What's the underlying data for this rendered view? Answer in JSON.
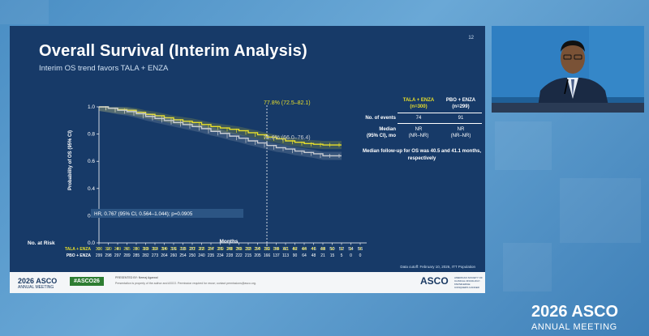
{
  "slide": {
    "title": "Overall Survival (Interim Analysis)",
    "subtitle": "Interim OS trend favors TALA + ENZA",
    "number": "12",
    "cutoff": "Data cutoff: February 10, 2026, ITT Population"
  },
  "chart_data": {
    "type": "line",
    "ylabel": "Probability of OS (95% CI)",
    "xlabel": "Months",
    "ylim": [
      0.0,
      1.0
    ],
    "yticks": [
      "0.0",
      "0.2",
      "0.4",
      "0.6",
      "0.8",
      "1.0"
    ],
    "xticks": [
      "0",
      "2",
      "4",
      "6",
      "8",
      "10",
      "12",
      "14",
      "16",
      "18",
      "20",
      "22",
      "24",
      "26",
      "28",
      "30",
      "32",
      "34",
      "36",
      "38",
      "40",
      "42",
      "44",
      "46",
      "48",
      "50",
      "52",
      "54",
      "56"
    ],
    "landmark_month": 36,
    "series": [
      {
        "name": "TALA + ENZA",
        "color": "#e8df2a",
        "x": [
          0,
          2,
          4,
          6,
          8,
          10,
          12,
          14,
          16,
          18,
          20,
          22,
          24,
          26,
          28,
          30,
          32,
          34,
          36,
          38,
          40,
          42,
          44,
          46,
          48,
          50,
          52
        ],
        "y": [
          1.0,
          0.99,
          0.98,
          0.975,
          0.96,
          0.945,
          0.935,
          0.92,
          0.905,
          0.895,
          0.885,
          0.87,
          0.855,
          0.845,
          0.835,
          0.825,
          0.81,
          0.795,
          0.778,
          0.765,
          0.75,
          0.74,
          0.73,
          0.725,
          0.72,
          0.72,
          0.72
        ]
      },
      {
        "name": "PBO + ENZA",
        "color": "#c9ccd2",
        "x": [
          0,
          2,
          4,
          6,
          8,
          10,
          12,
          14,
          16,
          18,
          20,
          22,
          24,
          26,
          28,
          30,
          32,
          34,
          36,
          38,
          40,
          42,
          44,
          46,
          48,
          50,
          52
        ],
        "y": [
          1.0,
          0.99,
          0.975,
          0.965,
          0.95,
          0.93,
          0.915,
          0.9,
          0.885,
          0.87,
          0.855,
          0.84,
          0.82,
          0.805,
          0.785,
          0.77,
          0.75,
          0.735,
          0.716,
          0.7,
          0.69,
          0.675,
          0.665,
          0.655,
          0.64,
          0.64,
          0.64
        ]
      }
    ],
    "annotations": {
      "tala": "77.8% (72.5–82.1)",
      "pbo": "71.6% (66.0–76.4)",
      "hr": "HR, 0.767 (95% CI, 0.564–1.044); p=0.0905"
    },
    "at_risk": {
      "title": "No. at Risk",
      "rows": [
        {
          "label": "TALA + ENZA",
          "color": "#e8df2a",
          "values": [
            "300",
            "300",
            "299",
            "295",
            "290",
            "288",
            "284",
            "280",
            "276",
            "273",
            "272",
            "266",
            "257",
            "250",
            "248",
            "246",
            "239",
            "224",
            "183",
            "144",
            "121",
            "86",
            "66",
            "47",
            "24",
            "11",
            "3",
            "1",
            "0"
          ]
        },
        {
          "label": "PBO + ENZA",
          "color": "#ffffff",
          "values": [
            "299",
            "298",
            "297",
            "289",
            "285",
            "282",
            "273",
            "264",
            "260",
            "254",
            "250",
            "240",
            "235",
            "234",
            "228",
            "222",
            "215",
            "205",
            "166",
            "137",
            "113",
            "90",
            "64",
            "48",
            "21",
            "15",
            "5",
            "0",
            "0"
          ]
        }
      ]
    }
  },
  "table": {
    "col1": "TALA + ENZA",
    "col1_n": "(n=300)",
    "col2": "PBO + ENZA",
    "col2_n": "(n=299)",
    "events_label": "No. of events",
    "events": [
      "74",
      "91"
    ],
    "median_label": "Median",
    "median_label2": "(95% CI), mo",
    "median": [
      "NR",
      "NR"
    ],
    "median_ci": [
      "(NR–NR)",
      "(NR–NR)"
    ],
    "followup": "Median follow-up for OS was 40.5 and 41.1 months, respectively"
  },
  "footer": {
    "year": "2026",
    "name": "ASCO",
    "meeting": "ANNUAL MEETING",
    "hashtag": "#ASCO26",
    "presenter": "PRESENTED BY: Neeraj Agarwal",
    "disclaimer": "Presentation is property of the author and ASCO. Permission required for reuse; contact permissions@asco.org.",
    "tagline": "AMERICAN SOCIETY OF CLINICAL ONCOLOGY · KNOWLEDGE CONQUERS CANCER"
  },
  "watermark": {
    "year": "2026",
    "name": "ASCO",
    "meeting": "ANNUAL MEETING"
  },
  "colors": {
    "slide_bg": "#173a68",
    "tala": "#e8df2a",
    "pbo": "#c9ccd2",
    "accent_green": "#2e7d32"
  }
}
